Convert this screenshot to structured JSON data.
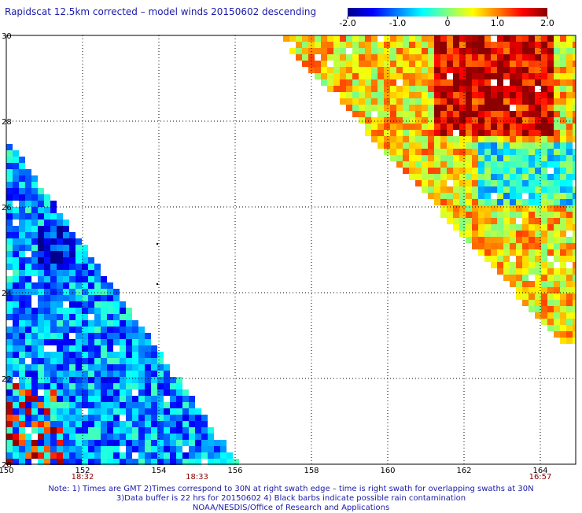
{
  "title": "Rapidscat 12.5km corrected – model winds 20150602 descending",
  "colorbar": {
    "ticks": [
      "-2.0",
      "-1.0",
      "0",
      "1.0",
      "2.0"
    ],
    "range": [
      -2.0,
      2.0
    ],
    "colors": [
      "#00008b",
      "#0000ff",
      "#0080ff",
      "#00ffff",
      "#80ff80",
      "#ffff00",
      "#ff8000",
      "#ff0000",
      "#8b0000"
    ]
  },
  "map": {
    "lon_labels": [
      "150",
      "152",
      "154",
      "156",
      "158",
      "160",
      "162",
      "164"
    ],
    "lat_labels": [
      "30",
      "28",
      "26",
      "24",
      "22",
      "20"
    ],
    "lon_range": [
      150,
      165
    ],
    "lat_range": [
      20,
      30
    ],
    "time_labels": [
      {
        "text": "18:32",
        "lon": 152
      },
      {
        "text": "18:33",
        "lon": 155
      },
      {
        "text": "16:57",
        "lon": 164
      }
    ]
  },
  "notes": [
    "Note: 1) Times are GMT 2)Times correspond to 30N at right swath edge – time is right swath for overlapping swaths at 30N",
    "3)Data buffer is 22 hrs for 20150602 4) Black barbs indicate possible rain contamination",
    "NOAA/NESDIS/Office of Research and Applications"
  ]
}
